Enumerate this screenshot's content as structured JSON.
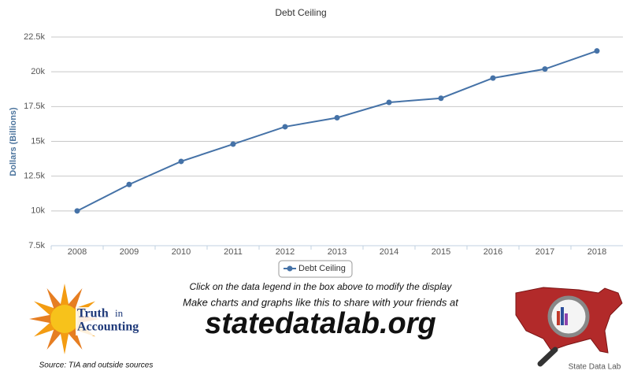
{
  "chart_data": {
    "type": "line",
    "title": "Debt Ceiling",
    "y_label": "Dollars (Billions)",
    "categories": [
      "2008",
      "2009",
      "2010",
      "2011",
      "2012",
      "2013",
      "2014",
      "2015",
      "2016",
      "2017",
      "2018"
    ],
    "series": [
      {
        "name": "Debt Ceiling",
        "color": "#4572a7",
        "values": [
          10000,
          11900,
          13560,
          14800,
          16050,
          16700,
          17800,
          18100,
          19550,
          20200,
          21500
        ]
      }
    ],
    "ylim": [
      7500,
      22500
    ],
    "yticks": [
      {
        "value": 7500,
        "label": "7.5k"
      },
      {
        "value": 10000,
        "label": "10k"
      },
      {
        "value": 12500,
        "label": "12.5k"
      },
      {
        "value": 15000,
        "label": "15k"
      },
      {
        "value": 17500,
        "label": "17.5k"
      },
      {
        "value": 20000,
        "label": "20k"
      },
      {
        "value": 22500,
        "label": "22.5k"
      }
    ],
    "grid": true
  },
  "footer": {
    "instruction": "Click on the data legend in the box above to modify the display",
    "tagline": "Make charts and graphs like this to share with your friends at",
    "site": "statedatalab.org",
    "source": "Source: TIA and outside sources",
    "logo_line1": "Truth",
    "logo_line1b": "in",
    "logo_line2": "Accounting",
    "map_label": "State Data Lab"
  }
}
